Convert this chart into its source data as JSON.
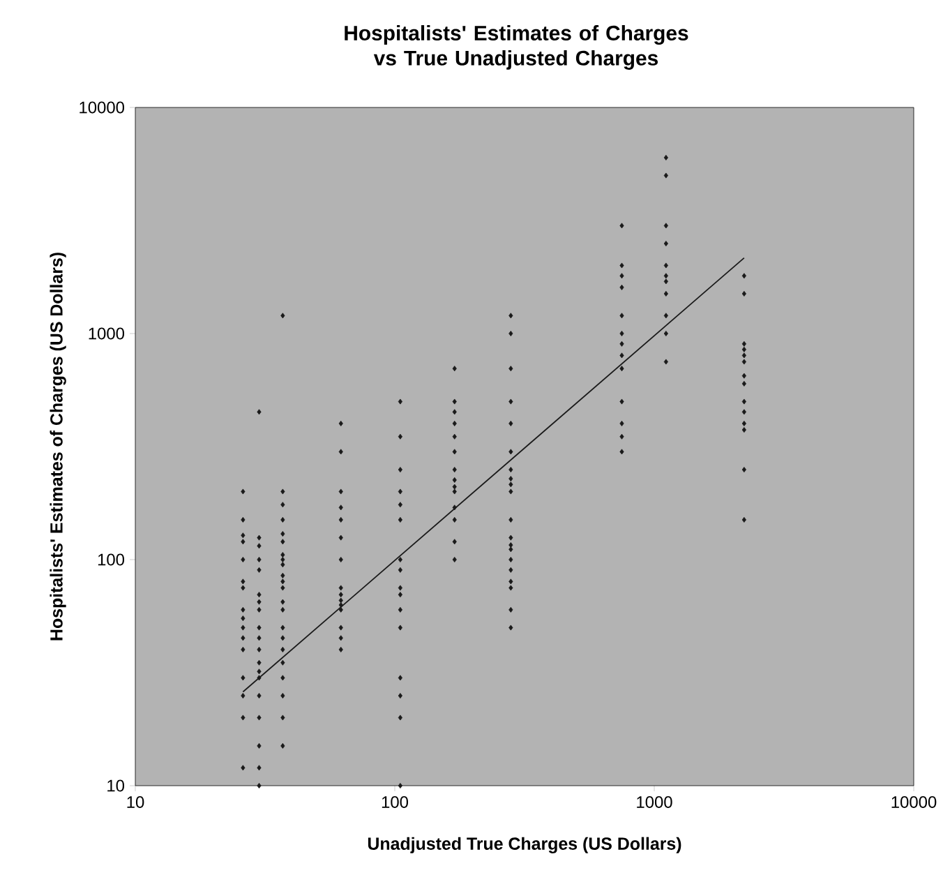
{
  "chart_data": {
    "type": "scatter",
    "title": "Hospitalists' Estimates of Charges vs True Unadjusted Charges",
    "xlabel": "Unadjusted True Charges (US Dollars)",
    "ylabel": "Hospitalists' Estimates of Charges (US Dollars)",
    "log": "xy",
    "xlim": [
      10,
      10000
    ],
    "ylim": [
      10,
      10000
    ],
    "xticks": [
      10,
      100,
      1000,
      10000
    ],
    "yticks": [
      10,
      100,
      1000,
      10000
    ],
    "series": [
      {
        "color": "#1a1a1a",
        "marker": "diamond",
        "x": [
          26,
          26,
          26,
          26,
          26,
          26,
          26,
          26,
          26,
          26,
          26,
          26,
          26,
          26,
          26,
          26,
          30,
          30,
          30,
          30,
          30,
          30,
          30,
          30,
          30,
          30,
          30,
          30,
          30,
          30,
          30,
          30,
          30,
          30,
          30,
          37,
          37,
          37,
          37,
          37,
          37,
          37,
          37,
          37,
          37,
          37,
          37,
          37,
          37,
          37,
          37,
          37,
          37,
          37,
          37,
          37,
          37,
          62,
          62,
          62,
          62,
          62,
          62,
          62,
          62,
          62,
          62,
          62,
          62,
          62,
          62,
          62,
          105,
          105,
          105,
          105,
          105,
          105,
          105,
          105,
          105,
          105,
          105,
          105,
          105,
          105,
          105,
          105,
          170,
          170,
          170,
          170,
          170,
          170,
          170,
          170,
          170,
          170,
          170,
          170,
          170,
          170,
          280,
          280,
          280,
          280,
          280,
          280,
          280,
          280,
          280,
          280,
          280,
          280,
          280,
          280,
          280,
          280,
          280,
          280,
          280,
          280,
          750,
          750,
          750,
          750,
          750,
          750,
          750,
          750,
          750,
          750,
          750,
          750,
          750,
          1110,
          1110,
          1110,
          1110,
          1110,
          1110,
          1110,
          1110,
          1110,
          1110,
          1110,
          2220,
          2220,
          2220,
          2220,
          2220,
          2220,
          2220,
          2220,
          2220,
          2220,
          2220,
          2220,
          2220,
          2220
        ],
        "values": [
          200,
          150,
          128,
          120,
          100,
          80,
          75,
          60,
          55,
          50,
          45,
          40,
          30,
          25,
          20,
          12,
          450,
          125,
          115,
          100,
          90,
          70,
          65,
          60,
          50,
          45,
          40,
          35,
          32,
          30,
          25,
          20,
          15,
          12,
          10,
          1200,
          200,
          175,
          150,
          130,
          120,
          105,
          100,
          95,
          85,
          80,
          75,
          65,
          60,
          50,
          45,
          40,
          35,
          30,
          25,
          20,
          15,
          400,
          300,
          200,
          170,
          150,
          125,
          100,
          75,
          70,
          66,
          63,
          60,
          50,
          45,
          40,
          500,
          350,
          250,
          200,
          175,
          150,
          100,
          90,
          75,
          70,
          60,
          50,
          30,
          25,
          20,
          10,
          700,
          500,
          450,
          400,
          350,
          300,
          250,
          225,
          210,
          200,
          170,
          150,
          120,
          100,
          1200,
          1000,
          700,
          500,
          400,
          300,
          250,
          228,
          215,
          200,
          150,
          125,
          116,
          111,
          100,
          90,
          80,
          75,
          60,
          50,
          3000,
          2000,
          1800,
          1600,
          1200,
          1000,
          900,
          800,
          700,
          500,
          400,
          350,
          300,
          6000,
          5000,
          3000,
          2500,
          2000,
          1800,
          1700,
          1500,
          1200,
          1000,
          750,
          1800,
          1500,
          900,
          850,
          800,
          750,
          650,
          600,
          500,
          450,
          400,
          375,
          250,
          150
        ]
      },
      {
        "type": "line",
        "color": "#1a1a1a",
        "x": [
          26,
          2220
        ],
        "values": [
          26,
          2160
        ]
      }
    ]
  }
}
